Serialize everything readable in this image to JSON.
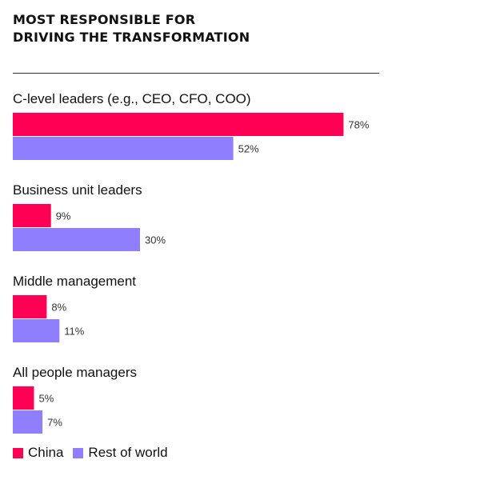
{
  "header": {
    "title_line1": "MOST RESPONSIBLE FOR",
    "title_line2": "DRIVING THE TRANSFORMATION"
  },
  "colors": {
    "china": "#FF0055",
    "rest_of_world": "#8F7FFF"
  },
  "legend": [
    {
      "label": "China",
      "color": "#FF0055"
    },
    {
      "label": "Rest of world",
      "color": "#8F7FFF"
    }
  ],
  "chart_data": {
    "type": "bar",
    "orientation": "horizontal",
    "title": "MOST RESPONSIBLE FOR DRIVING THE TRANSFORMATION",
    "categories": [
      "C-level leaders (e.g., CEO, CFO, COO)",
      "Business unit leaders",
      "Middle management",
      "All people managers"
    ],
    "series": [
      {
        "name": "China",
        "color": "#FF0055",
        "values": [
          78,
          9,
          8,
          5
        ]
      },
      {
        "name": "Rest of world",
        "color": "#8F7FFF",
        "values": [
          52,
          30,
          11,
          7
        ]
      }
    ],
    "value_suffix": "%",
    "xlim": [
      0,
      100
    ],
    "grid": false,
    "legend_position": "bottom-left"
  }
}
